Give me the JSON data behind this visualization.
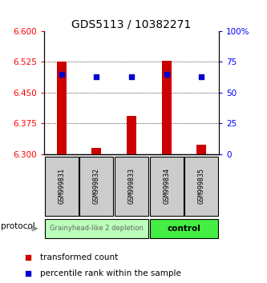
{
  "title": "GDS5113 / 10382271",
  "samples": [
    "GSM999831",
    "GSM999832",
    "GSM999833",
    "GSM999834",
    "GSM999835"
  ],
  "bar_values": [
    6.525,
    6.315,
    6.393,
    6.527,
    6.323
  ],
  "bar_base": 6.3,
  "percentile_values": [
    65,
    63,
    63,
    65,
    63
  ],
  "ylim_left": [
    6.3,
    6.6
  ],
  "ylim_right": [
    0,
    100
  ],
  "left_ticks": [
    6.3,
    6.375,
    6.45,
    6.525,
    6.6
  ],
  "right_ticks": [
    0,
    25,
    50,
    75,
    100
  ],
  "right_tick_labels": [
    "0",
    "25",
    "50",
    "75",
    "100%"
  ],
  "bar_color": "#cc0000",
  "percentile_color": "#0000cc",
  "grid_color": "#000000",
  "groups": [
    {
      "label": "Grainyhead-like 2 depletion",
      "samples": [
        0,
        1,
        2
      ],
      "color": "#bbffbb",
      "text_color": "#666666"
    },
    {
      "label": "control",
      "samples": [
        3,
        4
      ],
      "color": "#44ee44",
      "text_color": "#000000"
    }
  ],
  "protocol_label": "protocol",
  "legend_items": [
    {
      "color": "#cc0000",
      "label": "transformed count"
    },
    {
      "color": "#0000cc",
      "label": "percentile rank within the sample"
    }
  ],
  "sample_box_color": "#cccccc",
  "title_fontsize": 10,
  "tick_fontsize": 7.5,
  "legend_fontsize": 7.5
}
